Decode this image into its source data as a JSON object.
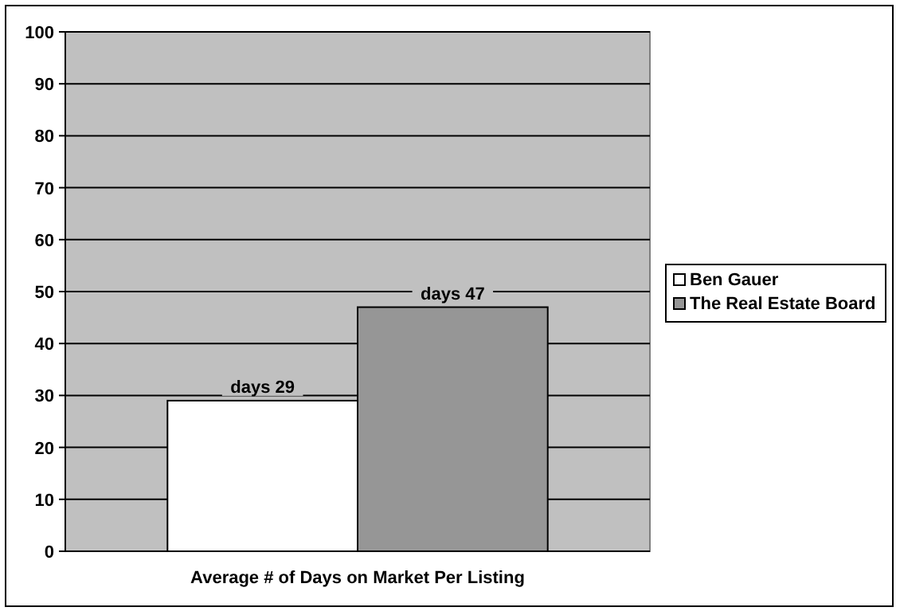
{
  "chart_data": {
    "type": "bar",
    "categories": [
      "Average # of Days on Market Per Listing"
    ],
    "series": [
      {
        "name": "Ben Gauer",
        "color": "#ffffff",
        "values": [
          29
        ],
        "value_labels": [
          "days 29"
        ]
      },
      {
        "name": "The Real Estate Board",
        "color": "#969696",
        "values": [
          47
        ],
        "value_labels": [
          "days 47"
        ]
      }
    ],
    "ylim": [
      0,
      100
    ],
    "yticks": [
      0,
      10,
      20,
      30,
      40,
      50,
      60,
      70,
      80,
      90,
      100
    ],
    "grid": "y",
    "legend": "right"
  }
}
